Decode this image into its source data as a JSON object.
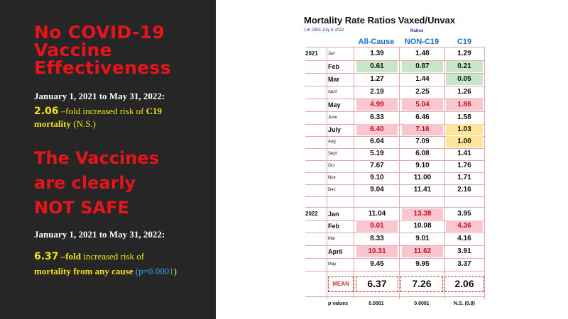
{
  "left": {
    "headline1": [
      "No COVID-19",
      "Vaccine",
      "Effectiveness"
    ],
    "date1": "January 1, 2021 to May 31, 2022:",
    "c19_value": "2.06",
    "c19_text_a": " –fold increased risk of ",
    "c19_text_b": "C19",
    "c19_line2": "mortality",
    "c19_ns": " (N.S.)",
    "headline2": [
      "The Vaccines",
      "are clearly",
      "NOT SAFE"
    ],
    "date2": "January 1, 2021 to May 31, 2022:",
    "all_value": "6.37",
    "all_text_a": " –fold",
    "all_text_b": " increased risk of",
    "all_line2": "mortality from any cause",
    "all_p": " (p=0.0001",
    "all_close": ")"
  },
  "table": {
    "title": "Mortality Rate Ratios Vaxed/Unvax",
    "source": "UK ONS July 6 2022",
    "ratios_label": "Ratios",
    "col_all": "All-Cause",
    "col_non": "NON-C19",
    "col_c19": "C19",
    "rows": [
      {
        "year": "2021",
        "month": "Jan",
        "all": "1.39",
        "non": "1.48",
        "c19": "1.29"
      },
      {
        "month": "Feb",
        "all": "0.61",
        "non": "0.87",
        "c19": "0.21"
      },
      {
        "month": "Mar",
        "all": "1.27",
        "non": "1.44",
        "c19": "0.05"
      },
      {
        "month": "April",
        "all": "2.19",
        "non": "2.25",
        "c19": "1.26"
      },
      {
        "month": "May",
        "all": "4.99",
        "non": "5.04",
        "c19": "1.86"
      },
      {
        "month": "June",
        "all": "6.33",
        "non": "6.46",
        "c19": "1.58"
      },
      {
        "month": "July",
        "all": "6.40",
        "non": "7.16",
        "c19": "1.03"
      },
      {
        "month": "Aug",
        "all": "6.04",
        "non": "7.09",
        "c19": "1.00"
      },
      {
        "month": "Sept",
        "all": "5.19",
        "non": "6.08",
        "c19": "1.41"
      },
      {
        "month": "Oct",
        "all": "7.67",
        "non": "9.10",
        "c19": "1.76"
      },
      {
        "month": "Nov",
        "all": "9.10",
        "non": "11.00",
        "c19": "1.71"
      },
      {
        "month": "Dec",
        "all": "9.04",
        "non": "11.41",
        "c19": "2.16"
      },
      {
        "year": "2022",
        "month": "Jan",
        "all": "11.04",
        "non": "13.38",
        "c19": "3.95"
      },
      {
        "month": "Feb",
        "all": "9.01",
        "non": "10.08",
        "c19": "4.36"
      },
      {
        "month": "Mar",
        "all": "8.33",
        "non": "9.01",
        "c19": "4.16"
      },
      {
        "month": "April",
        "all": "10.31",
        "non": "11.62",
        "c19": "3.91"
      },
      {
        "month": "May",
        "all": "9.45",
        "non": "9.95",
        "c19": "3.37"
      }
    ],
    "mean_label": "MEAN",
    "mean_all": "6.37",
    "mean_non": "7.26",
    "mean_c19": "2.06",
    "pvalues_label": "p values",
    "p_all": "0.0001",
    "p_non": "0.0001",
    "p_c19": "N.S. (0.8)"
  }
}
